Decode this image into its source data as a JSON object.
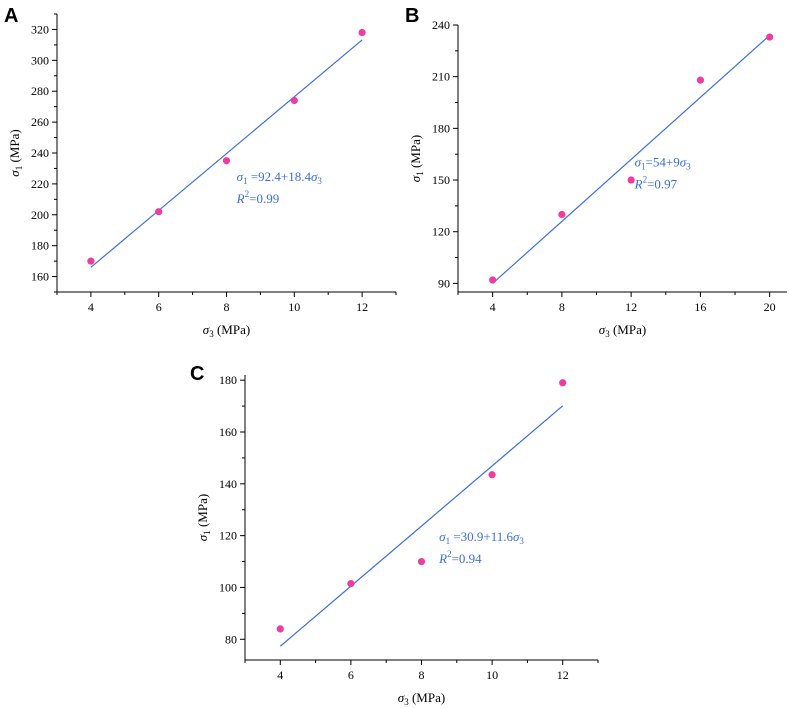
{
  "chart_data": [
    {
      "panel_label": "A",
      "type": "scatter",
      "x": [
        4,
        6,
        8,
        10,
        12
      ],
      "y": [
        170,
        202,
        235,
        274,
        318
      ],
      "fit": {
        "intercept": 92.4,
        "slope": 18.4,
        "x_range": [
          4,
          12
        ]
      },
      "xlim": [
        3,
        13
      ],
      "ylim": [
        150,
        330
      ],
      "xticks": [
        4,
        6,
        8,
        10,
        12
      ],
      "yticks": [
        160,
        180,
        200,
        220,
        240,
        260,
        280,
        300,
        320
      ],
      "xlabel": {
        "symbol": "σ",
        "sub": "3",
        "unit": " (MPa)"
      },
      "ylabel": {
        "symbol": "σ",
        "sub": "1",
        "unit": " (MPa)"
      },
      "equation": {
        "lhs_symbol": "σ",
        "lhs_sub": "1",
        "rhs_text": " =92.4+18.4",
        "rhs_symbol": "σ",
        "rhs_sub": "3"
      },
      "r2": {
        "symbol": "R",
        "sup": "2",
        "value": "=0.99"
      },
      "annotation_anchor": {
        "x": 8.3,
        "y": 222
      },
      "colors": {
        "marker": "#ee3ca0",
        "line": "#3b6fe0",
        "annotation": "#3b6fe0"
      }
    },
    {
      "panel_label": "B",
      "type": "scatter",
      "x": [
        4,
        8,
        12,
        16,
        20
      ],
      "y": [
        92,
        130,
        150,
        208,
        233
      ],
      "fit": {
        "intercept": 54,
        "slope": 9,
        "x_range": [
          4,
          20
        ]
      },
      "xlim": [
        2,
        21
      ],
      "ylim": [
        85,
        240
      ],
      "xticks": [
        4,
        8,
        12,
        16,
        20
      ],
      "yticks": [
        90,
        120,
        150,
        180,
        210,
        240
      ],
      "xlabel": {
        "symbol": "σ",
        "sub": "3",
        "unit": " (MPa)"
      },
      "ylabel": {
        "symbol": "σ",
        "sub": "1",
        "unit": " (MPa)"
      },
      "equation": {
        "lhs_symbol": "σ",
        "lhs_sub": "1",
        "rhs_text": "=54+9",
        "rhs_symbol": "σ",
        "rhs_sub": "3"
      },
      "r2": {
        "symbol": "R",
        "sup": "2",
        "value": "=0.97"
      },
      "annotation_anchor": {
        "x": 12.2,
        "y": 158
      },
      "colors": {
        "marker": "#ee3ca0",
        "line": "#3b6fe0",
        "annotation": "#3b6fe0"
      }
    },
    {
      "panel_label": "C",
      "type": "scatter",
      "x": [
        4,
        6,
        8,
        10,
        12
      ],
      "y": [
        84,
        101.5,
        110,
        143.5,
        179
      ],
      "fit": {
        "intercept": 30.9,
        "slope": 11.6,
        "x_range": [
          4,
          12
        ]
      },
      "xlim": [
        3,
        13
      ],
      "ylim": [
        72,
        182
      ],
      "xticks": [
        4,
        6,
        8,
        10,
        12
      ],
      "yticks": [
        80,
        100,
        120,
        140,
        160,
        180
      ],
      "xlabel": {
        "symbol": "σ",
        "sub": "3",
        "unit": " (MPa)"
      },
      "ylabel": {
        "symbol": "σ",
        "sub": "1",
        "unit": " (MPa)"
      },
      "equation": {
        "lhs_symbol": "σ",
        "lhs_sub": "1",
        "rhs_text": " =30.9+11.6",
        "rhs_symbol": "σ",
        "rhs_sub": "3"
      },
      "r2": {
        "symbol": "R",
        "sup": "2",
        "value": "=0.94"
      },
      "annotation_anchor": {
        "x": 8.5,
        "y": 118
      },
      "colors": {
        "marker": "#ee3ca0",
        "line": "#3b6fe0",
        "annotation": "#3b6fe0"
      }
    }
  ]
}
